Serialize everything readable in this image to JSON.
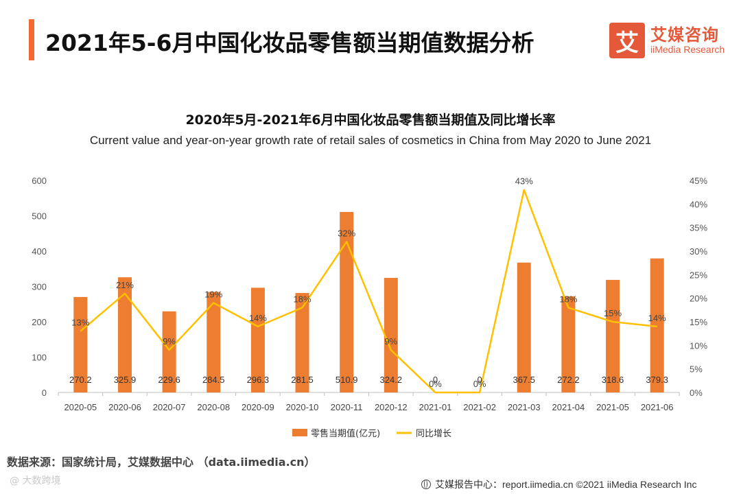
{
  "header": {
    "title": "2021年5-6月中国化妆品零售额当期值数据分析",
    "brand_mark": "艾",
    "brand_cn": "艾媒咨询",
    "brand_en": "iiMedia Research"
  },
  "colors": {
    "accent": "#F26A32",
    "bar": "#ED7D31",
    "line": "#FFC000",
    "brand": "#E4593A"
  },
  "chart_data": {
    "type": "bar",
    "title": "2020年5月-2021年6月中国化妆品零售额当期值及同比增长率",
    "subtitle": "Current value and year-on-year growth rate of retail sales of cosmetics in China from May 2020 to June 2021",
    "categories": [
      "2020-05",
      "2020-06",
      "2020-07",
      "2020-08",
      "2020-09",
      "2020-10",
      "2020-11",
      "2020-12",
      "2021-01",
      "2021-02",
      "2021-03",
      "2021-04",
      "2021-05",
      "2021-06"
    ],
    "series": [
      {
        "name": "零售当期值(亿元)",
        "type": "bar",
        "axis": "left",
        "values": [
          270.2,
          325.9,
          229.6,
          284.5,
          296.3,
          281.5,
          510.9,
          324.2,
          0,
          0,
          367.5,
          272.2,
          318.6,
          379.3
        ],
        "labels": [
          "270.2",
          "325.9",
          "229.6",
          "284.5",
          "296.3",
          "281.5",
          "510.9",
          "324.2",
          "0",
          "0",
          "367.5",
          "272.2",
          "318.6",
          "379.3"
        ]
      },
      {
        "name": "同比增长",
        "type": "line",
        "axis": "right",
        "values": [
          13,
          21,
          9,
          19,
          14,
          18,
          32,
          9,
          0,
          0,
          43,
          18,
          15,
          14
        ],
        "labels": [
          "13%",
          "21%",
          "9%",
          "19%",
          "14%",
          "18%",
          "32%",
          "9%",
          "0%",
          "0%",
          "43%",
          "18%",
          "15%",
          "14%"
        ]
      }
    ],
    "y_left": {
      "ylim": [
        0,
        600
      ],
      "ticks": [
        "0",
        "100",
        "200",
        "300",
        "400",
        "500",
        "600"
      ]
    },
    "y_right": {
      "ylim": [
        0,
        45
      ],
      "ticks": [
        "0%",
        "5%",
        "10%",
        "15%",
        "20%",
        "25%",
        "30%",
        "35%",
        "40%",
        "45%"
      ]
    },
    "grid": false,
    "legend_position": "bottom"
  },
  "footer": {
    "source": "数据来源：国家统计局，艾媒数据中心 （data.iimedia.cn）",
    "watermark": "@ 大数跨境",
    "report_center": "艾媒报告中心：report.iimedia.cn ©2021 iiMedia Research Inc"
  }
}
